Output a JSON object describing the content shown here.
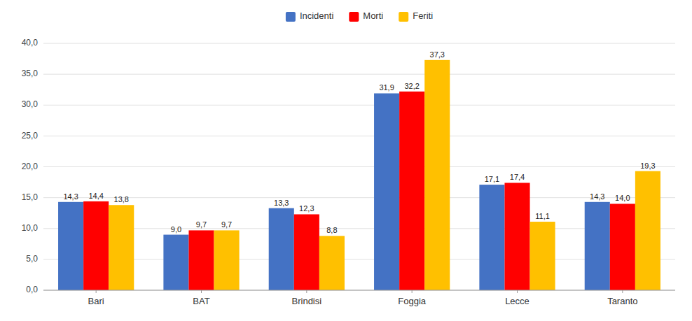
{
  "chart_data": {
    "type": "bar",
    "categories": [
      "Bari",
      "BAT",
      "Brindisi",
      "Foggia",
      "Lecce",
      "Taranto"
    ],
    "series": [
      {
        "name": "Incidenti",
        "color": "#4472C4",
        "values": [
          14.3,
          9.0,
          13.3,
          31.9,
          17.1,
          14.3
        ],
        "value_labels": [
          "14,3",
          "9,0",
          "13,3",
          "31,9",
          "17,1",
          "14,3"
        ]
      },
      {
        "name": "Morti",
        "color": "#FF0000",
        "values": [
          14.4,
          9.7,
          12.3,
          32.2,
          17.4,
          14.0
        ],
        "value_labels": [
          "14,4",
          "9,7",
          "12,3",
          "32,2",
          "17,4",
          "14,0"
        ]
      },
      {
        "name": "Feriti",
        "color": "#FFC000",
        "values": [
          13.8,
          9.7,
          8.8,
          37.3,
          11.1,
          19.3
        ],
        "value_labels": [
          "13,8",
          "9,7",
          "8,8",
          "37,3",
          "11,1",
          "19,3"
        ]
      }
    ],
    "ylim": [
      0,
      40
    ],
    "yticks": [
      {
        "value": 0.0,
        "label": "0,0"
      },
      {
        "value": 5.0,
        "label": "5,0"
      },
      {
        "value": 10.0,
        "label": "10,0"
      },
      {
        "value": 15.0,
        "label": "15,0"
      },
      {
        "value": 20.0,
        "label": "20,0"
      },
      {
        "value": 25.0,
        "label": "25,0"
      },
      {
        "value": 30.0,
        "label": "30,0"
      },
      {
        "value": 35.0,
        "label": "35,0"
      },
      {
        "value": 40.0,
        "label": "40,0"
      }
    ],
    "grid": true,
    "legend": "top",
    "data_labels": true
  }
}
